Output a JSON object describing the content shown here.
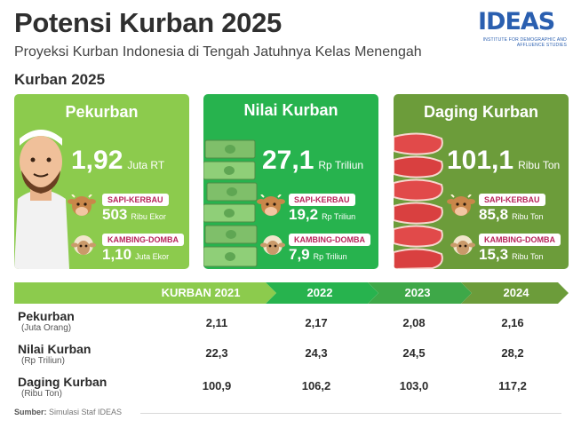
{
  "header": {
    "title": "Potensi Kurban 2025",
    "subtitle": "Proyeksi Kurban Indonesia di Tengah Jatuhnya Kelas Menengah",
    "section_title": "Kurban 2025"
  },
  "logo": {
    "text": "IDEAS",
    "subtext": "INSTITUTE FOR DEMOGRAPHIC AND AFFLUENCE STUDIES"
  },
  "cards": [
    {
      "title": "Pekurban",
      "value": "1,92",
      "unit": "Juta RT",
      "sub1_label": "SAPI-KERBAU",
      "sub1_value": "503",
      "sub1_unit": "Ribu Ekor",
      "sub2_label": "KAMBING-DOMBA",
      "sub2_value": "1,10",
      "sub2_unit": "Juta Ekor"
    },
    {
      "title": "Nilai Kurban",
      "value": "27,1",
      "unit": "Rp Triliun",
      "sub1_label": "SAPI-KERBAU",
      "sub1_value": "19,2",
      "sub1_unit": "Rp Triliun",
      "sub2_label": "KAMBING-DOMBA",
      "sub2_value": "7,9",
      "sub2_unit": "Rp Triliun"
    },
    {
      "title": "Daging Kurban",
      "value": "101,1",
      "unit": "Ribu Ton",
      "sub1_label": "SAPI-KERBAU",
      "sub1_value": "85,8",
      "sub1_unit": "Ribu Ton",
      "sub2_label": "KAMBING-DOMBA",
      "sub2_value": "15,3",
      "sub2_unit": "Ribu Ton"
    }
  ],
  "colors": {
    "card1": "#8ccb4d",
    "card2": "#27b34e",
    "card3": "#6c9c3a",
    "pill_text": "#b8245a",
    "timeline": [
      "#8ccb4d",
      "#27b34e",
      "#3ea848",
      "#6c9c3a"
    ]
  },
  "table": {
    "columns": [
      "KURBAN 2021",
      "2022",
      "2023",
      "2024"
    ],
    "rows": [
      {
        "label": "Pekurban",
        "unit": "(Juta Orang)",
        "values": [
          "2,11",
          "2,17",
          "2,08",
          "2,16"
        ]
      },
      {
        "label": "Nilai Kurban",
        "unit": "(Rp Triliun)",
        "values": [
          "22,3",
          "24,3",
          "24,5",
          "28,2"
        ]
      },
      {
        "label": "Daging Kurban",
        "unit": "(Ribu Ton)",
        "values": [
          "100,9",
          "106,2",
          "103,0",
          "117,2"
        ]
      }
    ]
  },
  "chart_data": {
    "type": "table",
    "title": "Kurban 2025",
    "columns": [
      "KURBAN 2021",
      "2022",
      "2023",
      "2024"
    ],
    "series": [
      {
        "name": "Pekurban",
        "values": [
          2.11,
          2.17,
          2.08,
          2.16
        ]
      },
      {
        "name": "Nilai Kurban",
        "values": [
          22.3,
          24.3,
          24.5,
          28.2
        ]
      },
      {
        "name": "Daging Kurban",
        "values": [
          100.9,
          106.2,
          103.0,
          117.2
        ]
      }
    ]
  },
  "source": {
    "label": "Sumber:",
    "text": "Simulasi Staf IDEAS"
  }
}
